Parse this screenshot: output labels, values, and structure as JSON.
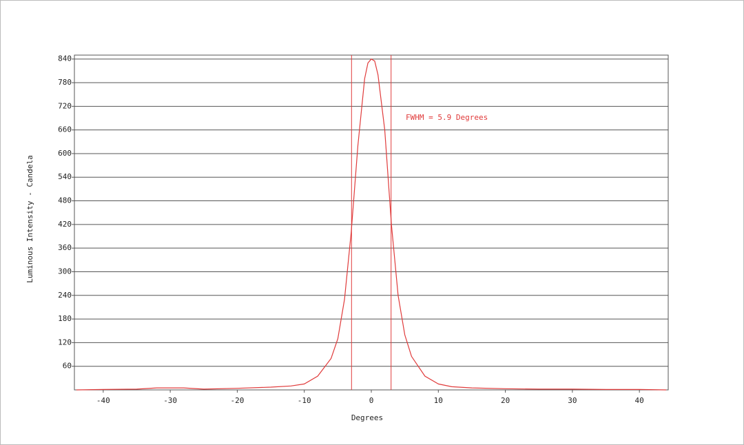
{
  "chart_data": {
    "type": "line",
    "xlabel": "Degrees",
    "ylabel": "Luminous Intensity - Candela",
    "annotation": "FWHM =  5.9 Degrees",
    "x": [
      -44,
      -40,
      -35,
      -32,
      -28,
      -25,
      -20,
      -15,
      -12,
      -10,
      -8,
      -6,
      -5,
      -4,
      -3,
      -2,
      -1,
      -0.5,
      0,
      0.5,
      1,
      2,
      3,
      4,
      5,
      6,
      8,
      10,
      12,
      15,
      20,
      25,
      30,
      35,
      40,
      44
    ],
    "values": [
      0,
      1,
      2,
      5,
      5,
      2,
      4,
      7,
      10,
      15,
      35,
      80,
      130,
      230,
      400,
      620,
      790,
      830,
      840,
      835,
      800,
      660,
      420,
      240,
      140,
      85,
      35,
      15,
      8,
      5,
      3,
      2,
      2,
      1,
      1,
      0
    ],
    "color": "#e03a3a",
    "fwhm_lines": [
      -2.95,
      2.95
    ],
    "xlim": [
      -44.3,
      44.3
    ],
    "xticks": [
      -40,
      -30,
      -20,
      -10,
      0,
      10,
      20,
      30,
      40
    ],
    "ylim": [
      0,
      850
    ],
    "yticks": [
      60,
      120,
      180,
      240,
      300,
      360,
      420,
      480,
      540,
      600,
      660,
      720,
      780,
      840
    ],
    "grid": true
  }
}
